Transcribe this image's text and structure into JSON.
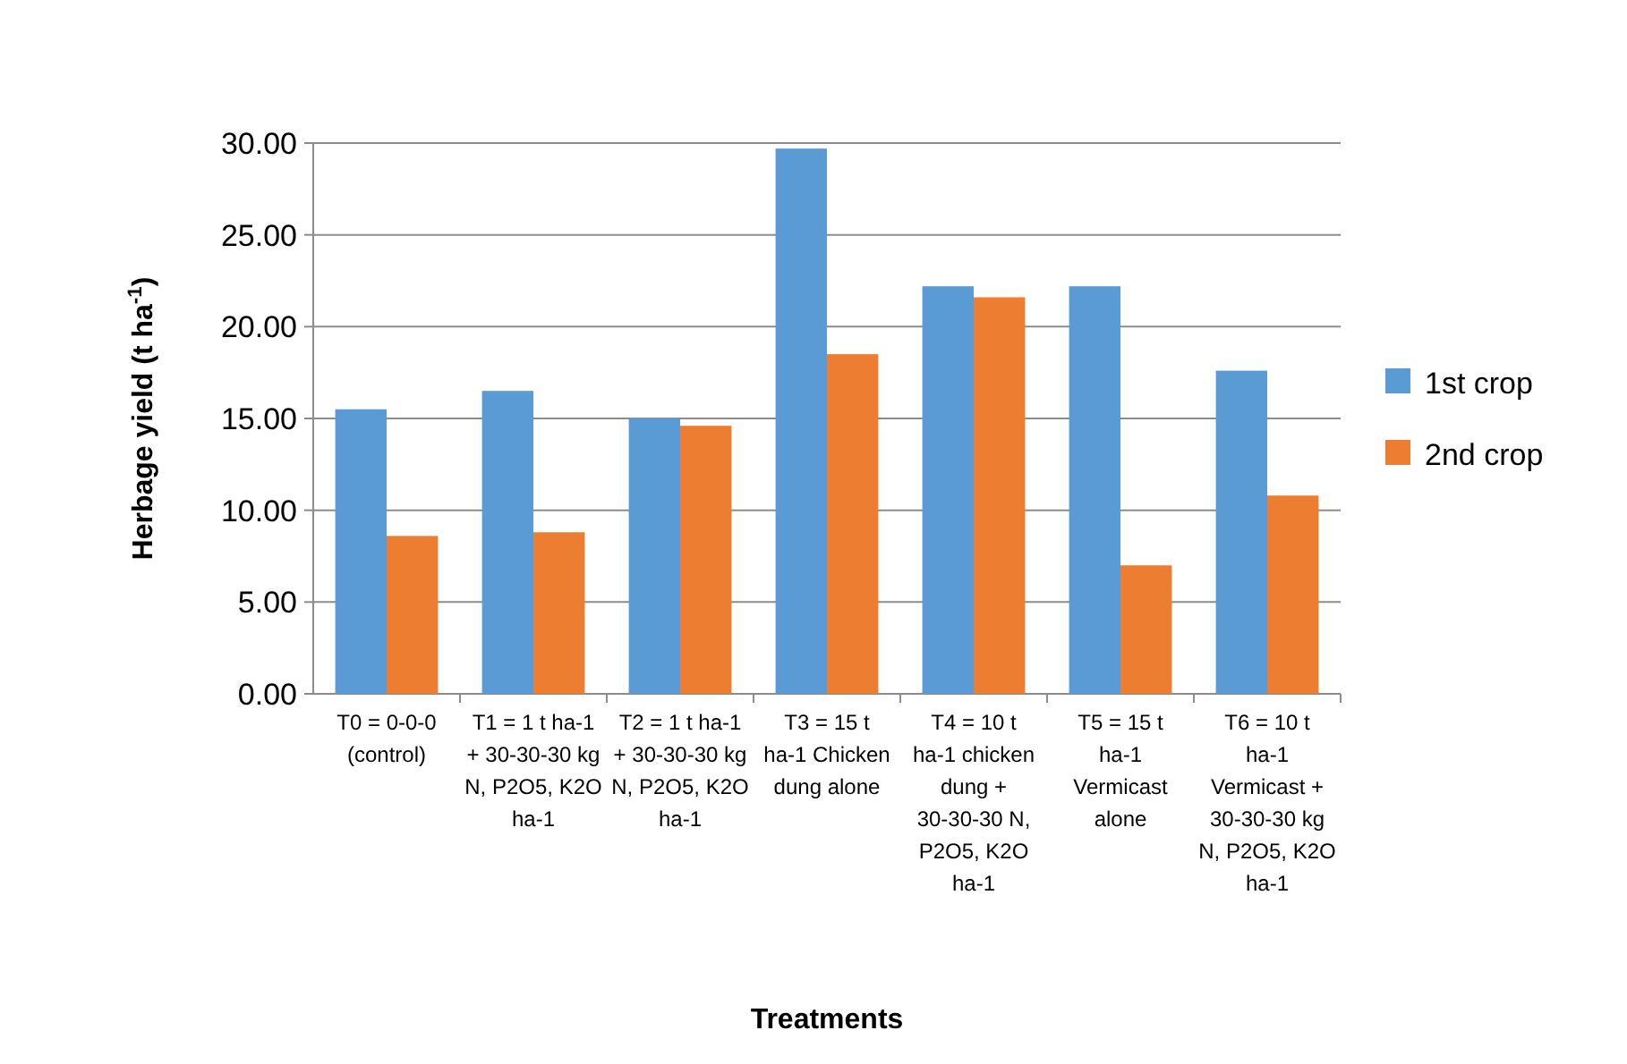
{
  "chart_data": {
    "type": "bar",
    "xlabel": "Treatments",
    "ylabel": "Herbage yield (t ha$^{-1}$)",
    "categories": [
      "T0 = 0-0-0 (control)",
      "T1 = 1 t ha-1 + 30-30-30 kg N, P2O5, K2O ha-1",
      "T2 = 1 t ha-1 + 30-30-30 kg N, P2O5, K2O ha-1",
      "T3 = 15 t ha-1 Chicken dung alone",
      "T4 = 10 t ha-1 chicken dung + 30-30-30 N, P2O5, K2O ha-1",
      "T5 = 15 t ha-1 Vermicast alone",
      "T6 = 10 t ha-1 Vermicast + 30-30-30 kg N, P2O5, K2O ha-1"
    ],
    "series": [
      {
        "name": "1st crop",
        "color": "#5b9bd5",
        "values": [
          15.5,
          16.5,
          15.0,
          29.7,
          22.2,
          22.2,
          17.6
        ]
      },
      {
        "name": "2nd crop",
        "color": "#ed7d31",
        "values": [
          8.6,
          8.8,
          14.6,
          18.5,
          21.6,
          7.0,
          10.8
        ]
      }
    ],
    "ylim": [
      0,
      30
    ],
    "yticks": [
      {
        "value": 0,
        "label": "0.00"
      },
      {
        "value": 5,
        "label": "5.00"
      },
      {
        "value": 10,
        "label": "10.00"
      },
      {
        "value": 15,
        "label": "15.00"
      },
      {
        "value": 20,
        "label": "20.00"
      },
      {
        "value": 25,
        "label": "25.00"
      },
      {
        "value": 30,
        "label": "30.00"
      }
    ],
    "grid": "y",
    "legend": "right"
  }
}
